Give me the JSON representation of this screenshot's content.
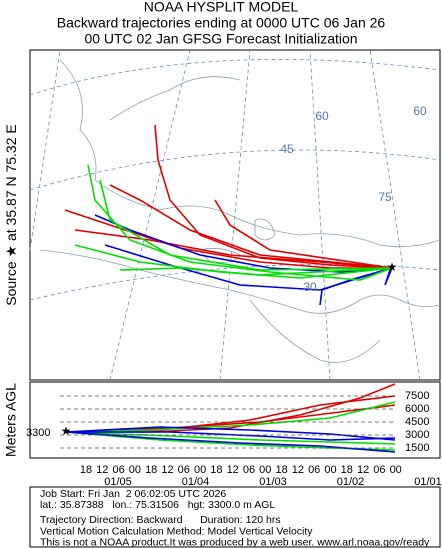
{
  "header": [
    "NOAA HYSPLIT MODEL",
    "Backward trajectories ending at 0000 UTC 06 Jan 26",
    "00 UTC 02 Jan    GFSG  Forecast Initialization"
  ],
  "side_label": [
    "Source",
    "★",
    "at",
    "35.87 N",
    "75.32 E"
  ],
  "map": {
    "grid_labels": [
      "60",
      "45",
      "30",
      "75",
      "60"
    ]
  },
  "vertical": {
    "axis_label": "Meters AGL",
    "yticks": [
      7500,
      6000,
      4500,
      3000,
      1500
    ],
    "start_height": "3300",
    "time_labels": [
      "18",
      "12",
      "06",
      "00",
      "18",
      "12",
      "06",
      "00",
      "18",
      "12",
      "06",
      "00",
      "18",
      "12",
      "06",
      "00",
      "18",
      "12",
      "06",
      "00"
    ],
    "dates": [
      "01/05",
      "01/04",
      "01/03",
      "01/02",
      "01/01"
    ]
  },
  "footer": [
    "Job Start: Fri Jan  2 06:02:05 UTC 2026",
    "lat.: 35.87388   lon.: 75.31506   hgt: 3300.0 m AGL",
    "Trajectory Direction: Backward      Duration: 120 hrs",
    "Vertical Motion Calculation Method: Model Vertical Velocity",
    "This is not a NOAA product.It was produced by a web user. www.arl.noaa.gov/ready"
  ]
}
